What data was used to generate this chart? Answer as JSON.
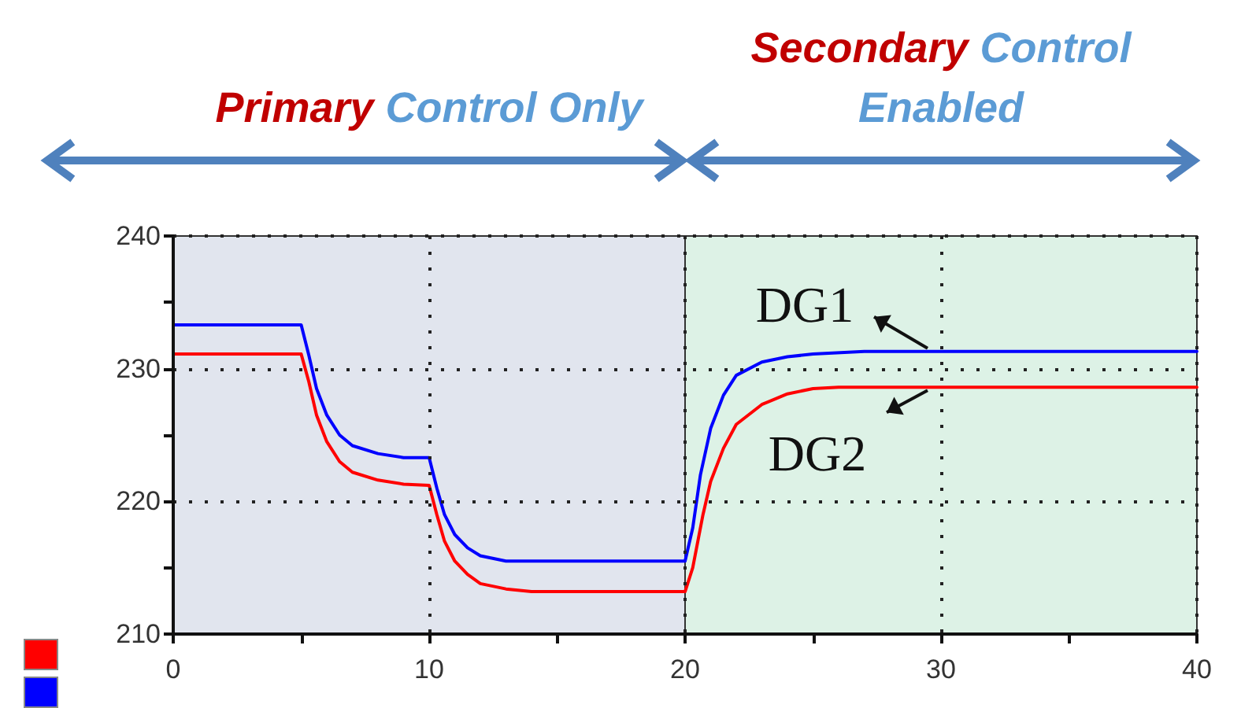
{
  "chart_data": {
    "type": "line",
    "series": [
      {
        "name": "DG1",
        "color": "#0000ff",
        "x": [
          0,
          5,
          5.3,
          5.6,
          6,
          6.5,
          7,
          8,
          9,
          10,
          10.3,
          10.6,
          11,
          11.5,
          12,
          13,
          20,
          20.3,
          20.6,
          21,
          21.5,
          22,
          23,
          24,
          25,
          27,
          40
        ],
        "values": [
          233.3,
          233.3,
          231,
          228.5,
          226.5,
          225,
          224.2,
          223.6,
          223.3,
          223.3,
          221,
          219,
          217.5,
          216.5,
          215.9,
          215.5,
          215.5,
          218,
          222,
          225.5,
          228,
          229.5,
          230.5,
          230.9,
          231.1,
          231.3,
          231.3
        ]
      },
      {
        "name": "DG2",
        "color": "#ff0000",
        "x": [
          0,
          5,
          5.3,
          5.6,
          6,
          6.5,
          7,
          8,
          9,
          10,
          10.3,
          10.6,
          11,
          11.5,
          12,
          13,
          14,
          20,
          20.3,
          20.7,
          21,
          21.5,
          22,
          23,
          24,
          25,
          26,
          40
        ],
        "values": [
          231.1,
          231.1,
          229,
          226.5,
          224.5,
          223,
          222.2,
          221.6,
          221.3,
          221.2,
          219,
          217,
          215.5,
          214.5,
          213.8,
          213.4,
          213.2,
          213.2,
          215,
          219,
          221.5,
          224,
          225.8,
          227.3,
          228.1,
          228.5,
          228.6,
          228.6
        ]
      }
    ],
    "xlim": [
      0,
      40
    ],
    "xticks": [
      0,
      {
        "value": 5,
        "label": null
      },
      10,
      {
        "value": 15,
        "label": null
      },
      20,
      {
        "value": 25,
        "label": null
      },
      30,
      {
        "value": 35,
        "label": null
      },
      40
    ],
    "ylim": [
      210,
      240
    ],
    "yticks": [
      210,
      {
        "value": 215,
        "label": null
      },
      220,
      {
        "value": 225,
        "label": null
      },
      230,
      {
        "value": 235,
        "label": null
      },
      240
    ],
    "grid": true,
    "legend": false,
    "marker": "none",
    "line_style": "solid",
    "bands": [
      {
        "axis": "x",
        "from": 0,
        "to": 20,
        "label": "Primary Control Only",
        "color": "#e1e5ee"
      },
      {
        "axis": "x",
        "from": 20,
        "to": 40,
        "label": "Secondary Control\nEnabled",
        "color": "#ddf2e6"
      }
    ]
  }
}
